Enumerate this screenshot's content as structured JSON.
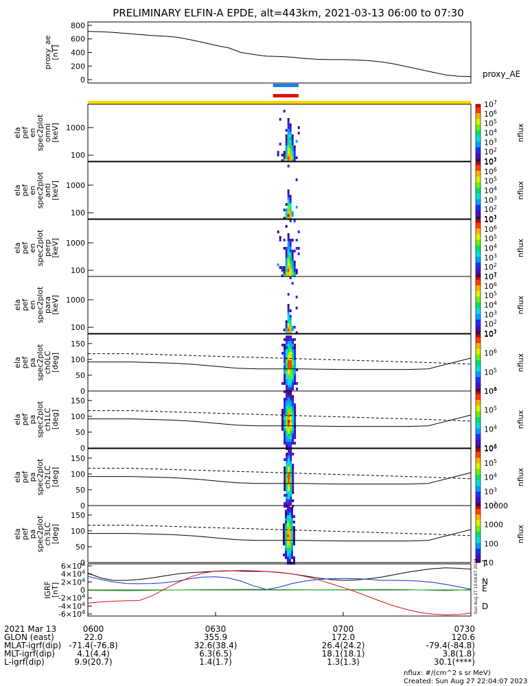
{
  "title": "PRELIMINARY ELFIN-A EPDE, alt=443km, 2021-03-13 06:00 to 07:30",
  "colors": {
    "ae_line": "#000000",
    "flag_blue": "#1e7fe8",
    "flag_red": "#e01010",
    "flag_yellow": "#ffd700",
    "grf_x": "#e01010",
    "grf_y": "#1030d0",
    "grf_z": "#10b010",
    "grf_t": "#000000"
  },
  "colormap": [
    "#ffffff",
    "#3b0a6e",
    "#4b0fbf",
    "#1d2fff",
    "#00a0ff",
    "#00e0e0",
    "#00e070",
    "#70f000",
    "#e0f000",
    "#ffb000",
    "#ff4000",
    "#d00000"
  ],
  "chart_data": [
    {
      "id": "proxy_ae",
      "type": "line",
      "ylabel": [
        "proxy_ae",
        "[nT]"
      ],
      "right_label": "proxy_AE",
      "ylim": [
        -50,
        850
      ],
      "yticks": [
        0,
        200,
        400,
        600,
        800
      ],
      "x_minutes": [
        0,
        3,
        6,
        9,
        12,
        15,
        18,
        21,
        24,
        27,
        30,
        33,
        36,
        39,
        42,
        45,
        48,
        51,
        54,
        57,
        60,
        63,
        66,
        69,
        72,
        75,
        78,
        81,
        84,
        87,
        90
      ],
      "values": [
        710,
        705,
        695,
        680,
        665,
        650,
        640,
        625,
        590,
        550,
        505,
        470,
        400,
        370,
        345,
        340,
        330,
        310,
        300,
        295,
        295,
        290,
        280,
        260,
        230,
        190,
        150,
        110,
        70,
        50,
        45
      ]
    },
    {
      "id": "flags",
      "type": "bar",
      "bars": [
        {
          "name": "blue",
          "start_min": 43.5,
          "end_min": 49.5
        },
        {
          "name": "red",
          "start_min": 43.5,
          "end_min": 49.5
        }
      ],
      "yellow_bar": {
        "start_min": 0,
        "end_min": 90
      }
    },
    {
      "id": "ela_pef_en_spec2plot_omni",
      "type": "heatmap",
      "ylabel": [
        "ela",
        "pef",
        "en",
        "spec2plot",
        "omni",
        "[keV]"
      ],
      "yscale": "log",
      "ylim_keV": [
        60,
        7000
      ],
      "yticks": [
        100,
        1000
      ],
      "ytick_labels": [
        "100",
        "1000"
      ],
      "colorbar": {
        "label": "nflux",
        "min_exp": 1,
        "max_exp": 7,
        "ticks": [
          "10^1",
          "10^2",
          "10^3",
          "10^4",
          "10^5",
          "10^6",
          "10^7"
        ]
      },
      "start_min": 43.5,
      "end_min": 49.5,
      "peak_min": 47.0,
      "peak_E_keV": 80,
      "max_E_keV": 2500,
      "density": 1.0,
      "spread": 1.0
    },
    {
      "id": "ela_pef_en_spec2plot_anti",
      "type": "heatmap",
      "ylabel": [
        "ela",
        "pef",
        "en",
        "spec2plot",
        "anti",
        "[keV]"
      ],
      "yscale": "log",
      "ylim_keV": [
        60,
        7000
      ],
      "yticks": [
        100,
        1000
      ],
      "ytick_labels": [
        "100",
        "1000"
      ],
      "colorbar": {
        "label": "nflux",
        "min_exp": 1,
        "max_exp": 7,
        "ticks": [
          "10^1",
          "10^2",
          "10^3",
          "10^4",
          "10^5",
          "10^6",
          "10^7"
        ]
      },
      "start_min": 43.5,
      "end_min": 49.5,
      "peak_min": 47.0,
      "peak_E_keV": 90,
      "max_E_keV": 800,
      "density": 0.55,
      "spread": 0.7
    },
    {
      "id": "ela_pef_en_spec2plot_perp",
      "type": "heatmap",
      "ylabel": [
        "ela",
        "pef",
        "en",
        "spec2plot",
        "perp",
        "[keV]"
      ],
      "yscale": "log",
      "ylim_keV": [
        60,
        7000
      ],
      "yticks": [
        100,
        1000
      ],
      "ytick_labels": [
        "100",
        "1000"
      ],
      "colorbar": {
        "label": "nflux",
        "min_exp": 1,
        "max_exp": 7,
        "ticks": [
          "10^1",
          "10^2",
          "10^3",
          "10^4",
          "10^5",
          "10^6",
          "10^7"
        ]
      },
      "start_min": 43.5,
      "end_min": 49.5,
      "peak_min": 47.0,
      "peak_E_keV": 80,
      "max_E_keV": 2500,
      "density": 1.0,
      "spread": 1.0
    },
    {
      "id": "ela_pef_en_spec2plot_para",
      "type": "heatmap",
      "ylabel": [
        "ela",
        "pef",
        "en",
        "spec2plot",
        "para",
        "[keV]"
      ],
      "yscale": "log",
      "ylim_keV": [
        60,
        7000
      ],
      "yticks": [
        100,
        1000
      ],
      "ytick_labels": [
        "100",
        "1000"
      ],
      "colorbar": {
        "label": "nflux",
        "min_exp": 1,
        "max_exp": 7,
        "ticks": [
          "10^1",
          "10^2",
          "10^3",
          "10^4",
          "10^5",
          "10^6",
          "10^7"
        ]
      },
      "start_min": 43.5,
      "end_min": 49.5,
      "peak_min": 47.0,
      "peak_E_keV": 90,
      "max_E_keV": 800,
      "density": 0.5,
      "spread": 0.65
    },
    {
      "id": "ela_pef_pa_spec2plot_ch0LC",
      "type": "heatmap",
      "ylabel": [
        "ela",
        "pef",
        "pa",
        "spec2plot",
        "ch0LC",
        "[deg]"
      ],
      "yscale": "linear",
      "ylim_deg": [
        0,
        180
      ],
      "yticks": [
        0,
        50,
        100,
        150
      ],
      "colorbar": {
        "label": "nflux",
        "min_exp": 4,
        "max_exp": 7,
        "ticks": [
          "10^4",
          "10^5",
          "10^6",
          "10^7"
        ]
      },
      "start_min": 45.5,
      "end_min": 49.0,
      "center_min": 47.2,
      "lc_dashed_deg": [
        118,
        118,
        118,
        116,
        114,
        112,
        110,
        108,
        106,
        104,
        102,
        100,
        98,
        96,
        94,
        92,
        90,
        85
      ],
      "lc_solid_deg": [
        92,
        92,
        92,
        90,
        88,
        84,
        78,
        72,
        70,
        70,
        70,
        69,
        68,
        68,
        68,
        68,
        70,
        104
      ],
      "lc_x_min": [
        0,
        5,
        10,
        15,
        20,
        25,
        30,
        35,
        40,
        45,
        50,
        55,
        60,
        65,
        70,
        75,
        80,
        90
      ]
    },
    {
      "id": "ela_pef_pa_spec2plot_ch1LC",
      "type": "heatmap",
      "ylabel": [
        "ela",
        "pef",
        "pa",
        "spec2plot",
        "ch1LC",
        "[deg]"
      ],
      "yscale": "linear",
      "ylim_deg": [
        0,
        180
      ],
      "yticks": [
        0,
        50,
        100,
        150
      ],
      "colorbar": {
        "label": "nflux",
        "min_exp": 3,
        "max_exp": 6,
        "ticks": [
          "10^3",
          "10^4",
          "10^5",
          "10^6"
        ]
      },
      "start_min": 45.5,
      "end_min": 48.8,
      "center_min": 47.0,
      "lc_dashed_deg": [
        118,
        118,
        118,
        116,
        114,
        112,
        110,
        108,
        106,
        104,
        102,
        100,
        98,
        96,
        94,
        92,
        90,
        85
      ],
      "lc_solid_deg": [
        92,
        92,
        92,
        90,
        88,
        84,
        78,
        72,
        70,
        70,
        70,
        69,
        68,
        68,
        68,
        68,
        70,
        104
      ],
      "lc_x_min": [
        0,
        5,
        10,
        15,
        20,
        25,
        30,
        35,
        40,
        45,
        50,
        55,
        60,
        65,
        70,
        75,
        80,
        90
      ]
    },
    {
      "id": "ela_pef_pa_spec2plot_ch2LC",
      "type": "heatmap",
      "ylabel": [
        "ela",
        "pef",
        "pa",
        "spec2plot",
        "ch2LC",
        "[deg]"
      ],
      "yscale": "linear",
      "ylim_deg": [
        0,
        180
      ],
      "yticks": [
        0,
        50,
        100,
        150
      ],
      "colorbar": {
        "label": "nflux",
        "min_exp": 2,
        "max_exp": 6,
        "ticks": [
          "10^2",
          "10^3",
          "10^4",
          "10^5",
          "10^6"
        ]
      },
      "start_min": 46.0,
      "end_min": 48.3,
      "center_min": 47.0,
      "lc_dashed_deg": [
        118,
        118,
        118,
        116,
        114,
        112,
        110,
        108,
        106,
        104,
        102,
        100,
        98,
        96,
        94,
        92,
        90,
        85
      ],
      "lc_solid_deg": [
        92,
        92,
        92,
        90,
        88,
        84,
        78,
        72,
        70,
        70,
        70,
        69,
        68,
        68,
        68,
        68,
        70,
        104
      ],
      "lc_x_min": [
        0,
        5,
        10,
        15,
        20,
        25,
        30,
        35,
        40,
        45,
        50,
        55,
        60,
        65,
        70,
        75,
        80,
        90
      ]
    },
    {
      "id": "ela_pef_pa_spec2plot_ch3LC",
      "type": "heatmap",
      "ylabel": [
        "ela",
        "pef",
        "pa",
        "spec2plot",
        "ch3LC",
        "[deg]"
      ],
      "yscale": "linear",
      "ylim_deg": [
        0,
        180
      ],
      "yticks": [
        0,
        50,
        100,
        150
      ],
      "colorbar": {
        "label": "nflux",
        "min_exp": 1,
        "max_exp": 4,
        "ticks": [
          "10",
          "100",
          "1000",
          "10000"
        ]
      },
      "start_min": 45.8,
      "end_min": 48.5,
      "center_min": 47.0,
      "lc_dashed_deg": [
        118,
        118,
        118,
        116,
        114,
        112,
        110,
        108,
        106,
        104,
        102,
        100,
        98,
        96,
        94,
        92,
        90,
        85
      ],
      "lc_solid_deg": [
        92,
        92,
        92,
        90,
        88,
        84,
        78,
        72,
        70,
        70,
        70,
        69,
        68,
        68,
        68,
        68,
        70,
        104
      ],
      "lc_x_min": [
        0,
        5,
        10,
        15,
        20,
        25,
        30,
        35,
        40,
        45,
        50,
        55,
        60,
        65,
        70,
        75,
        80,
        90
      ]
    },
    {
      "id": "igrf",
      "type": "line",
      "ylabel": [
        "IGRF",
        "[nT]"
      ],
      "ylim": [
        -65000,
        65000
      ],
      "yticks": [
        -60000,
        -40000,
        -20000,
        0,
        20000,
        40000,
        60000
      ],
      "ytick_labels": [
        "-6×10^4",
        "-4×10^4",
        "-2×10^4",
        "0",
        "2×10^4",
        "4×10^4",
        "6×10^4"
      ],
      "legend": [
        "T",
        "N",
        "E",
        "D"
      ],
      "x_minutes": [
        0,
        3,
        6,
        9,
        12,
        15,
        18,
        21,
        24,
        27,
        30,
        33,
        36,
        39,
        42,
        45,
        48,
        51,
        54,
        57,
        60,
        63,
        66,
        69,
        72,
        75,
        78,
        81,
        84,
        87,
        90
      ],
      "series": [
        {
          "name": "T",
          "color": "#000000",
          "values": [
            42000,
            30000,
            24000,
            24000,
            26000,
            30000,
            35000,
            40000,
            43000,
            45000,
            46500,
            47500,
            48000,
            47500,
            46000,
            43500,
            40000,
            35000,
            30000,
            26000,
            24000,
            25000,
            28000,
            32000,
            38000,
            44000,
            49000,
            53000,
            55000,
            54000,
            52000
          ]
        },
        {
          "name": "N",
          "color": "#1030d0",
          "values": [
            34000,
            26000,
            20000,
            16000,
            15500,
            16000,
            18000,
            22000,
            28000,
            32000,
            33000,
            30000,
            22000,
            10000,
            1000,
            7000,
            16000,
            22000,
            26000,
            28000,
            28500,
            28000,
            26500,
            24000,
            24000,
            23500,
            22000,
            19000,
            14000,
            8000,
            2000
          ]
        },
        {
          "name": "E",
          "color": "#10b010",
          "values": [
            -1000,
            -1200,
            -1500,
            -1800,
            -1500,
            -1000,
            -500,
            0,
            500,
            800,
            1000,
            1200,
            1500,
            1500,
            1200,
            900,
            600,
            300,
            200,
            300,
            500,
            800,
            1000,
            1200,
            1000,
            600,
            0,
            -800,
            -1500,
            -500,
            1500
          ]
        },
        {
          "name": "D",
          "color": "#e01010",
          "values": [
            -33000,
            -30000,
            -28000,
            -27000,
            -26500,
            -15000,
            2000,
            18000,
            32000,
            42000,
            47000,
            48000,
            46500,
            46000,
            46000,
            44000,
            40000,
            34000,
            26000,
            16000,
            6000,
            -5000,
            -17000,
            -29000,
            -40000,
            -49000,
            -56000,
            -60000,
            -62000,
            -61000,
            -58000
          ]
        }
      ]
    }
  ],
  "time_axis": {
    "ticks": [
      "0600",
      "0630",
      "0700",
      "0730"
    ],
    "tick_min": [
      0,
      30,
      60,
      90
    ]
  },
  "ephemeris": {
    "rows": [
      {
        "label": "2021 Mar 13",
        "values": [
          "0600",
          "0630",
          "0700",
          "0730"
        ]
      },
      {
        "label": "GLON (east)",
        "values": [
          "22.0",
          "355.9",
          "172.0",
          "120.6"
        ]
      },
      {
        "label": "MLAT-igrf(dip)",
        "values": [
          "-71.4(-76.8)",
          "32.6(38.4)",
          "26.4(24.2)",
          "-79.4(-84.8)"
        ]
      },
      {
        "label": "MLT-igrf(dip)",
        "values": [
          "4.1(4.4)",
          "6.3(6.5)",
          "18.1(18.1)",
          "3.8(1.8)"
        ]
      },
      {
        "label": "L-igrf(dip)",
        "values": [
          "9.9(20.7)",
          "1.4(1.7)",
          "1.3(1.3)",
          "30.1(****)"
        ]
      }
    ]
  },
  "side_stamp": "Sun Aug 27 15:04:07 2023",
  "footer": {
    "line1": "nflux: #/(cm^2 s sr MeV)",
    "line2": "Created: Sun Aug 27 22:04:07 2023"
  }
}
